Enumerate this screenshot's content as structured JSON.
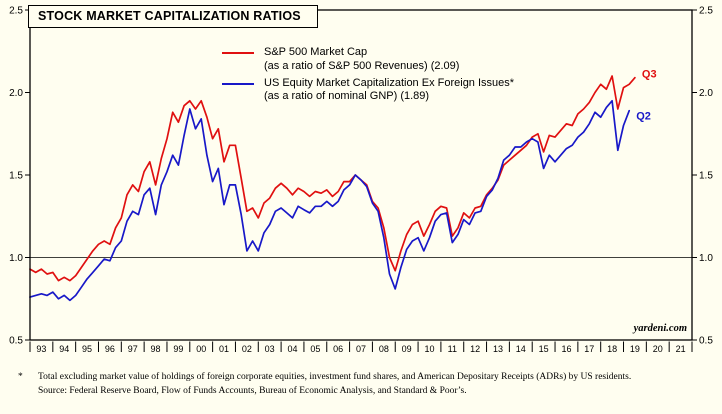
{
  "title": "STOCK MARKET CAPITALIZATION RATIOS",
  "legend": [
    {
      "name": "S&P 500 Market Cap",
      "sub": "(as a ratio of S&P 500 Revenues) (2.09)"
    },
    {
      "name": "US Equity Market Capitalization Ex Foreign Issues*",
      "sub": "(as a ratio of nominal GNP) (1.89)"
    }
  ],
  "watermark": "yardeni.com",
  "footnotes": {
    "asterisk": "*",
    "line1": "Total excluding market value of holdings of foreign corporate equities, investment fund shares, and American Depositary Receipts (ADRs) by US residents.",
    "line2": "Source: Federal Reserve Board, Flow of Funds Accounts, Bureau of Economic Analysis, and Standard & Poor’s."
  },
  "chart_data": {
    "type": "line",
    "title": "STOCK MARKET CAPITALIZATION RATIOS",
    "frequency": "quarterly",
    "x_range": [
      1993,
      2022
    ],
    "x_axis_years": [
      "93",
      "94",
      "95",
      "96",
      "97",
      "98",
      "99",
      "00",
      "01",
      "02",
      "03",
      "04",
      "05",
      "06",
      "07",
      "08",
      "09",
      "10",
      "11",
      "12",
      "13",
      "14",
      "15",
      "16",
      "17",
      "18",
      "19",
      "20",
      "21"
    ],
    "ylim": [
      0.5,
      2.5
    ],
    "y_ticks": [
      0.5,
      1.0,
      1.5,
      2.0,
      2.5
    ],
    "reference_line": 1.0,
    "legend_position": "top-center",
    "grid": false,
    "series": [
      {
        "name": "S&P 500 Market Cap (as a ratio of S&P 500 Revenues)",
        "color": "#E01010",
        "end_label": "Q3",
        "last_value": 2.09,
        "start_year": 1993,
        "values": [
          0.93,
          0.91,
          0.93,
          0.9,
          0.91,
          0.86,
          0.88,
          0.86,
          0.89,
          0.94,
          0.99,
          1.04,
          1.08,
          1.1,
          1.08,
          1.18,
          1.24,
          1.38,
          1.44,
          1.4,
          1.52,
          1.58,
          1.44,
          1.6,
          1.72,
          1.88,
          1.82,
          1.92,
          1.95,
          1.9,
          1.95,
          1.85,
          1.72,
          1.78,
          1.58,
          1.68,
          1.68,
          1.48,
          1.28,
          1.3,
          1.24,
          1.33,
          1.36,
          1.42,
          1.45,
          1.42,
          1.38,
          1.42,
          1.4,
          1.37,
          1.4,
          1.39,
          1.41,
          1.37,
          1.4,
          1.46,
          1.46,
          1.5,
          1.47,
          1.44,
          1.34,
          1.3,
          1.18,
          1.0,
          0.92,
          1.04,
          1.14,
          1.2,
          1.22,
          1.13,
          1.2,
          1.28,
          1.31,
          1.3,
          1.13,
          1.18,
          1.27,
          1.24,
          1.3,
          1.31,
          1.38,
          1.42,
          1.47,
          1.56,
          1.59,
          1.62,
          1.65,
          1.68,
          1.73,
          1.75,
          1.64,
          1.74,
          1.73,
          1.77,
          1.81,
          1.8,
          1.87,
          1.9,
          1.94,
          2.0,
          2.05,
          2.02,
          2.1,
          1.9,
          2.03,
          2.05,
          2.09
        ]
      },
      {
        "name": "US Equity Market Capitalization Ex Foreign Issues (as a ratio of nominal GNP)",
        "color": "#1818C8",
        "end_label": "Q2",
        "last_value": 1.89,
        "start_year": 1993,
        "values": [
          0.76,
          0.77,
          0.78,
          0.77,
          0.79,
          0.75,
          0.77,
          0.74,
          0.77,
          0.82,
          0.87,
          0.91,
          0.95,
          0.99,
          0.98,
          1.06,
          1.1,
          1.22,
          1.28,
          1.26,
          1.38,
          1.42,
          1.26,
          1.44,
          1.52,
          1.62,
          1.56,
          1.74,
          1.9,
          1.78,
          1.84,
          1.62,
          1.46,
          1.54,
          1.32,
          1.44,
          1.44,
          1.26,
          1.04,
          1.1,
          1.04,
          1.15,
          1.2,
          1.28,
          1.3,
          1.27,
          1.24,
          1.31,
          1.29,
          1.27,
          1.31,
          1.31,
          1.34,
          1.31,
          1.34,
          1.41,
          1.44,
          1.5,
          1.47,
          1.43,
          1.33,
          1.28,
          1.12,
          0.9,
          0.81,
          0.94,
          1.05,
          1.1,
          1.12,
          1.04,
          1.12,
          1.22,
          1.26,
          1.27,
          1.09,
          1.14,
          1.23,
          1.2,
          1.27,
          1.28,
          1.37,
          1.41,
          1.48,
          1.59,
          1.62,
          1.67,
          1.67,
          1.7,
          1.72,
          1.7,
          1.54,
          1.62,
          1.58,
          1.62,
          1.66,
          1.68,
          1.73,
          1.76,
          1.81,
          1.88,
          1.85,
          1.91,
          1.95,
          1.65,
          1.8,
          1.89
        ]
      }
    ]
  }
}
